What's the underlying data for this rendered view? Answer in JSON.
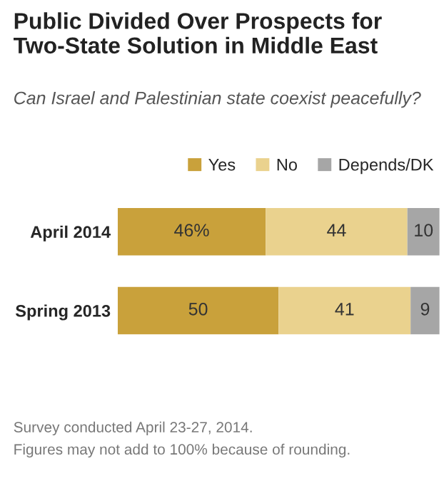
{
  "chart_data": {
    "type": "bar",
    "orientation": "horizontal",
    "stacked": true,
    "title": "Public Divided Over Prospects for Two-State Solution in Middle East",
    "subtitle": "Can Israel and Palestinian state coexist peacefully?",
    "categories": [
      "April 2014",
      "Spring 2013"
    ],
    "series": [
      {
        "name": "Yes",
        "color": "#c9a13b",
        "values": [
          46,
          50
        ],
        "value_labels": [
          "46%",
          "50"
        ]
      },
      {
        "name": "No",
        "color": "#ead28e",
        "values": [
          44,
          41
        ],
        "value_labels": [
          "44",
          "41"
        ]
      },
      {
        "name": "Depends/DK",
        "color": "#a6a6a6",
        "values": [
          10,
          9
        ],
        "value_labels": [
          "10",
          "9"
        ]
      }
    ],
    "legend": "top",
    "grid": false,
    "annotations": [
      "Survey conducted April 23-27, 2014.",
      "Figures may not add to 100% because of rounding."
    ]
  }
}
